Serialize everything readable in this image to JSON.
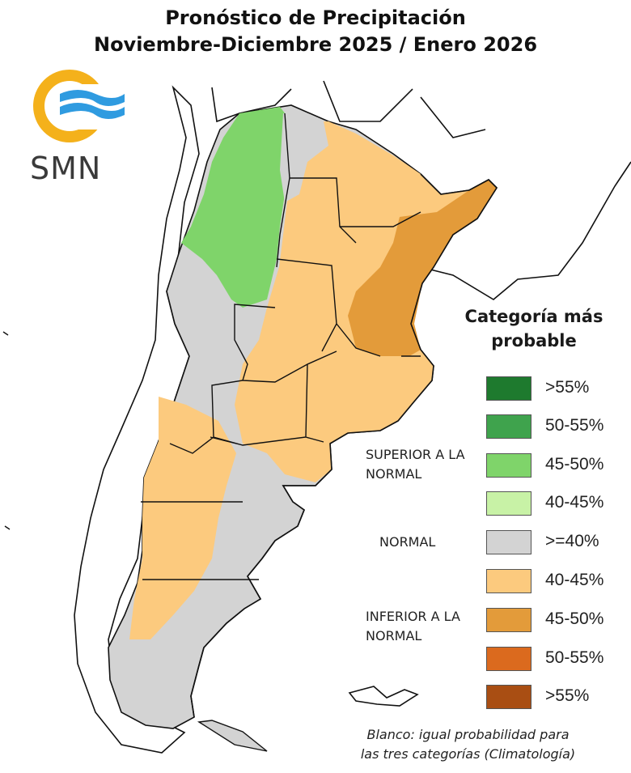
{
  "title": {
    "line1": "Pronóstico de Precipitación",
    "line2": "Noviembre-Diciembre 2025 / Enero 2026"
  },
  "logo": {
    "text": "SMN",
    "icon": "smn-sun-waves-logo"
  },
  "legend": {
    "title": "Categoría más probable",
    "categories": [
      {
        "label": "SUPERIOR A LA NORMAL",
        "items": [
          {
            "label": ">55%",
            "color": "#1e7a2e"
          },
          {
            "label": "50-55%",
            "color": "#3fa34d"
          },
          {
            "label": "45-50%",
            "color": "#7fd46a"
          },
          {
            "label": "40-45%",
            "color": "#c8f2a6"
          }
        ]
      },
      {
        "label": "NORMAL",
        "items": [
          {
            "label": ">=40%",
            "color": "#d3d3d3"
          }
        ]
      },
      {
        "label": "INFERIOR A LA NORMAL",
        "items": [
          {
            "label": "40-45%",
            "color": "#fcca7e"
          },
          {
            "label": "45-50%",
            "color": "#e39b3a"
          },
          {
            "label": "50-55%",
            "color": "#db6a1e"
          },
          {
            "label": ">55%",
            "color": "#a94e13"
          }
        ]
      }
    ]
  },
  "footnote": {
    "line1": "Blanco: igual probabilidad para",
    "line2": "las tres categorías (Climatología)"
  },
  "map_colors": {
    "ocean": "#ffffff",
    "border": "#111111",
    "superior": "#7fd46a",
    "normal": "#d3d3d3",
    "inferior_40_45": "#fcca7e",
    "inferior_45_50": "#e39b3a",
    "white": "#f4f4f4"
  }
}
